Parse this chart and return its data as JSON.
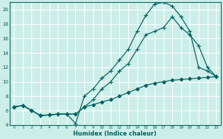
{
  "title": "",
  "xlabel": "Humidex (Indice chaleur)",
  "bg_color": "#cceee8",
  "grid_color": "#ffffff",
  "line_color": "#006060",
  "xlim": [
    -0.5,
    23.5
  ],
  "ylim": [
    4,
    21
  ],
  "xticks": [
    0,
    1,
    2,
    3,
    4,
    5,
    6,
    7,
    8,
    9,
    10,
    11,
    12,
    13,
    14,
    15,
    16,
    17,
    18,
    19,
    20,
    21,
    22,
    23
  ],
  "yticks": [
    4,
    6,
    8,
    10,
    12,
    14,
    16,
    18,
    20
  ],
  "series": [
    {
      "x": [
        0,
        1,
        2,
        3,
        4,
        5,
        6,
        7,
        8,
        9,
        10,
        11,
        12,
        13,
        14,
        15,
        16,
        17,
        18,
        19,
        20,
        21,
        22,
        23
      ],
      "y": [
        6.5,
        6.7,
        6.0,
        5.3,
        5.4,
        5.5,
        5.5,
        5.5,
        6.5,
        6.8,
        7.2,
        7.5,
        8.0,
        8.5,
        9.0,
        9.5,
        9.8,
        10.0,
        10.2,
        10.3,
        10.4,
        10.5,
        10.6,
        10.7
      ],
      "marker": "D",
      "markersize": 2.5,
      "linewidth": 0.9
    },
    {
      "x": [
        0,
        1,
        2,
        3,
        4,
        5,
        6,
        7,
        8,
        9,
        10,
        11,
        12,
        13,
        14,
        15,
        16,
        17,
        18,
        19,
        20,
        21,
        22,
        23
      ],
      "y": [
        6.5,
        6.7,
        6.0,
        5.3,
        5.4,
        5.5,
        5.5,
        5.5,
        6.5,
        7.5,
        9.0,
        10.0,
        11.5,
        12.5,
        14.5,
        16.5,
        17.0,
        17.5,
        19.0,
        17.5,
        16.5,
        15.0,
        12.0,
        10.7
      ],
      "marker": "+",
      "markersize": 4,
      "linewidth": 0.9
    },
    {
      "x": [
        0,
        1,
        2,
        3,
        4,
        5,
        6,
        7,
        8,
        9,
        10,
        11,
        12,
        13,
        14,
        15,
        16,
        17,
        18,
        19,
        20,
        21,
        22,
        23
      ],
      "y": [
        6.5,
        6.7,
        6.0,
        5.3,
        5.4,
        5.5,
        5.5,
        4.2,
        8.0,
        9.0,
        10.5,
        11.5,
        13.0,
        14.5,
        17.0,
        19.2,
        20.8,
        21.0,
        20.5,
        19.0,
        17.0,
        12.0,
        11.5,
        10.7
      ],
      "marker": "+",
      "markersize": 4,
      "linewidth": 0.9
    }
  ]
}
